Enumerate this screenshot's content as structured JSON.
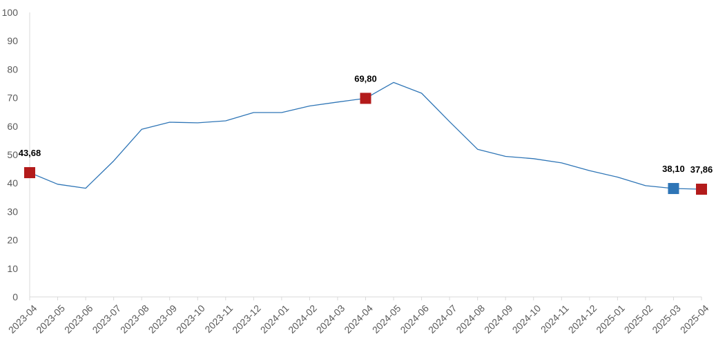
{
  "chart_data": {
    "type": "line",
    "title": "",
    "xlabel": "",
    "ylabel": "",
    "ylim": [
      0,
      100
    ],
    "yticks": [
      0,
      10,
      20,
      30,
      40,
      50,
      60,
      70,
      80,
      90,
      100
    ],
    "grid": false,
    "legend": "none",
    "categories": [
      "2023-04",
      "2023-05",
      "2023-06",
      "2023-07",
      "2023-08",
      "2023-09",
      "2023-10",
      "2023-11",
      "2023-12",
      "2024-01",
      "2024-02",
      "2024-03",
      "2024-04",
      "2024-05",
      "2024-06",
      "2024-07",
      "2024-08",
      "2024-09",
      "2024-10",
      "2024-11",
      "2024-12",
      "2025-01",
      "2025-02",
      "2025-03",
      "2025-04"
    ],
    "series": [
      {
        "values": [
          43.68,
          39.6,
          38.2,
          47.8,
          58.9,
          61.4,
          61.2,
          61.9,
          64.8,
          64.8,
          67.1,
          68.5,
          69.8,
          75.4,
          71.6,
          61.6,
          51.9,
          49.4,
          48.6,
          47.1,
          44.4,
          42.1,
          39.1,
          38.1,
          37.86
        ]
      }
    ],
    "line_color": "#2E75B6",
    "highlighted_points": [
      {
        "category": "2023-04",
        "value": 43.68,
        "label": "43,68",
        "color": "#B31B1B"
      },
      {
        "category": "2024-04",
        "value": 69.8,
        "label": "69,80",
        "color": "#B31B1B"
      },
      {
        "category": "2025-03",
        "value": 38.1,
        "label": "38,10",
        "color": "#2E75B6"
      },
      {
        "category": "2025-04",
        "value": 37.86,
        "label": "37,86",
        "color": "#B31B1B"
      }
    ]
  }
}
